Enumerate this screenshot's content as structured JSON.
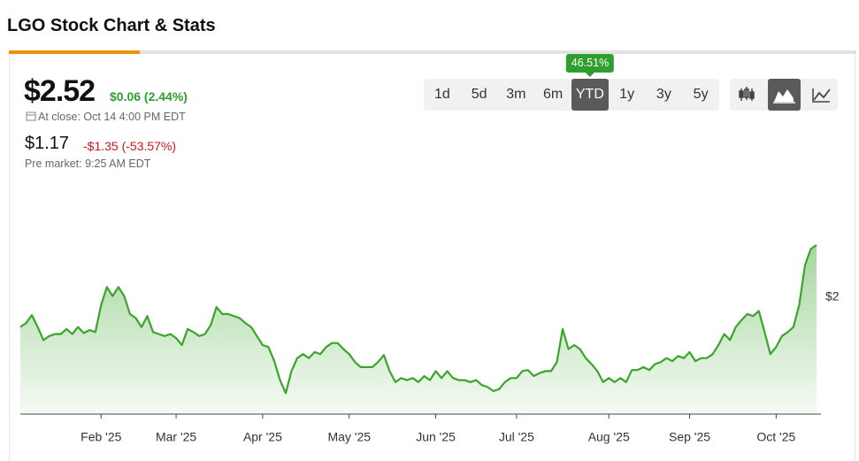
{
  "header": {
    "title": "LGO Stock Chart & Stats"
  },
  "quote": {
    "price": "$2.52",
    "change": "$0.06 (2.44%)",
    "close_time": "At close: Oct 14 4:00 PM EDT",
    "pre_price": "$1.17",
    "pre_change": "-$1.35 (-53.57%)",
    "pre_time": "Pre market: 9:25 AM EDT"
  },
  "ranges": {
    "buttons": [
      "1d",
      "5d",
      "3m",
      "6m",
      "YTD",
      "1y",
      "3y",
      "5y"
    ],
    "selected": 4,
    "selected_change": "46.51%"
  },
  "chart_data": {
    "type": "area",
    "color": "#3aa52a",
    "categories": [
      null,
      null,
      null,
      null,
      null,
      null,
      null,
      null,
      null,
      null,
      null,
      null,
      null,
      null,
      "Feb '25",
      null,
      null,
      null,
      null,
      null,
      null,
      null,
      null,
      null,
      null,
      null,
      null,
      "Mar '25",
      null,
      null,
      null,
      null,
      null,
      null,
      null,
      null,
      null,
      null,
      null,
      null,
      null,
      null,
      "Apr '25",
      null,
      null,
      null,
      null,
      null,
      null,
      null,
      null,
      null,
      null,
      null,
      null,
      null,
      null,
      "May '25",
      null,
      null,
      null,
      null,
      null,
      null,
      null,
      null,
      null,
      null,
      null,
      null,
      null,
      null,
      "Jun '25",
      null,
      null,
      null,
      null,
      null,
      null,
      null,
      null,
      null,
      null,
      null,
      null,
      null,
      "Jul '25",
      null,
      null,
      null,
      null,
      null,
      null,
      null,
      null,
      null,
      null,
      null,
      null,
      null,
      null,
      null,
      "Aug '25",
      null,
      null,
      null,
      null,
      null,
      null,
      null,
      null,
      null,
      null,
      null,
      null,
      null,
      "Sep '25",
      null,
      null,
      null,
      null,
      null,
      null,
      null,
      null,
      null,
      null,
      null,
      null,
      null,
      null,
      "Oct '25",
      null,
      null,
      null,
      null,
      null,
      null,
      null
    ],
    "values": [
      1.7,
      1.74,
      1.82,
      1.7,
      1.57,
      1.61,
      1.63,
      1.63,
      1.68,
      1.63,
      1.7,
      1.64,
      1.67,
      1.65,
      1.92,
      2.1,
      2.01,
      2.1,
      2.01,
      1.83,
      1.79,
      1.7,
      1.81,
      1.65,
      1.63,
      1.61,
      1.63,
      1.59,
      1.52,
      1.68,
      1.65,
      1.61,
      1.63,
      1.72,
      1.9,
      1.83,
      1.83,
      1.81,
      1.79,
      1.74,
      1.7,
      1.61,
      1.52,
      1.5,
      1.36,
      1.17,
      1.04,
      1.26,
      1.39,
      1.43,
      1.39,
      1.45,
      1.43,
      1.5,
      1.54,
      1.54,
      1.48,
      1.43,
      1.35,
      1.3,
      1.3,
      1.3,
      1.35,
      1.42,
      1.26,
      1.15,
      1.19,
      1.17,
      1.19,
      1.15,
      1.21,
      1.17,
      1.26,
      1.19,
      1.26,
      1.19,
      1.17,
      1.17,
      1.15,
      1.17,
      1.12,
      1.1,
      1.06,
      1.08,
      1.15,
      1.19,
      1.19,
      1.26,
      1.27,
      1.21,
      1.24,
      1.26,
      1.26,
      1.35,
      1.68,
      1.48,
      1.52,
      1.48,
      1.39,
      1.33,
      1.26,
      1.15,
      1.19,
      1.15,
      1.19,
      1.15,
      1.27,
      1.27,
      1.3,
      1.27,
      1.33,
      1.35,
      1.39,
      1.36,
      1.41,
      1.39,
      1.45,
      1.36,
      1.39,
      1.39,
      1.43,
      1.52,
      1.63,
      1.57,
      1.7,
      1.77,
      1.83,
      1.81,
      1.86,
      1.65,
      1.43,
      1.5,
      1.61,
      1.65,
      1.7,
      1.92,
      2.32,
      2.48,
      2.52
    ],
    "ylim": [
      0.83,
      3.2
    ],
    "yticks": [
      {
        "value": 2,
        "label": "$2"
      }
    ]
  }
}
